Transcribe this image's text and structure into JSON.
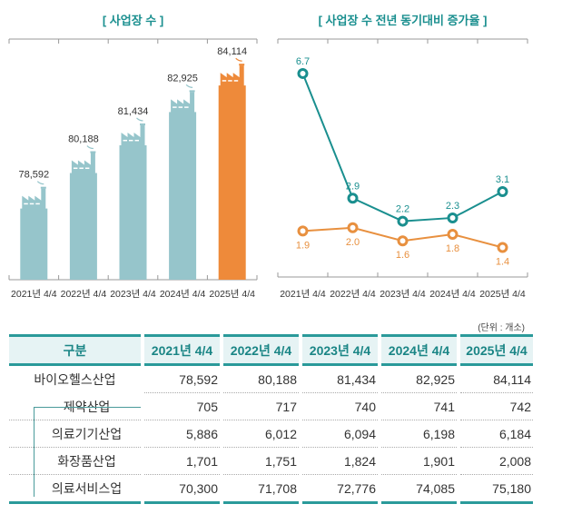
{
  "chart_data": [
    {
      "type": "bar",
      "title": "[ 사업장 수 ]",
      "categories": [
        "2021년 4/4",
        "2022년 4/4",
        "2023년 4/4",
        "2024년 4/4",
        "2025년 4/4"
      ],
      "values": [
        78592,
        80188,
        81434,
        82925,
        84114
      ],
      "value_labels": [
        "78,592",
        "80,188",
        "81,434",
        "82,925",
        "84,114"
      ],
      "ylim": [
        75400,
        86200
      ],
      "bar_shape": "factory",
      "colors": [
        "#96c5cb",
        "#96c5cb",
        "#96c5cb",
        "#96c5cb",
        "#ee8a3a"
      ],
      "grid": false
    },
    {
      "type": "line",
      "title": "[ 사업장 수 전년 동기대비 증가율 ]",
      "categories": [
        "2021년 4/4",
        "2022년 4/4",
        "2023년 4/4",
        "2024년 4/4",
        "2025년 4/4"
      ],
      "ylim": [
        0.5,
        7.75
      ],
      "grid": false,
      "series": [
        {
          "values": [
            6.7,
            2.9,
            2.2,
            2.3,
            3.1
          ],
          "labels": [
            "6.7",
            "2.9",
            "2.2",
            "2.3",
            "3.1"
          ],
          "color": "#1a8f8f",
          "label_pos": "above"
        },
        {
          "values": [
            1.9,
            2.0,
            1.6,
            1.8,
            1.4
          ],
          "labels": [
            "1.9",
            "2.0",
            "1.6",
            "1.8",
            "1.4"
          ],
          "color": "#e8903f",
          "label_pos": "below"
        }
      ]
    }
  ],
  "table": {
    "unit": "(단위 : 개소)",
    "headers": [
      "구분",
      "2021년 4/4",
      "2022년 4/4",
      "2023년 4/4",
      "2024년 4/4",
      "2025년 4/4"
    ],
    "rows": [
      {
        "label": "바이오헬스산업",
        "values": [
          "78,592",
          "80,188",
          "81,434",
          "82,925",
          "84,114"
        ]
      },
      {
        "label": "제약산업",
        "values": [
          "705",
          "717",
          "740",
          "741",
          "742"
        ]
      },
      {
        "label": "의료기기산업",
        "values": [
          "5,886",
          "6,012",
          "6,094",
          "6,198",
          "6,184"
        ]
      },
      {
        "label": "화장품산업",
        "values": [
          "1,701",
          "1,751",
          "1,824",
          "1,901",
          "2,008"
        ]
      },
      {
        "label": "의료서비스업",
        "values": [
          "70,300",
          "71,708",
          "72,776",
          "74,085",
          "75,180"
        ]
      }
    ]
  }
}
